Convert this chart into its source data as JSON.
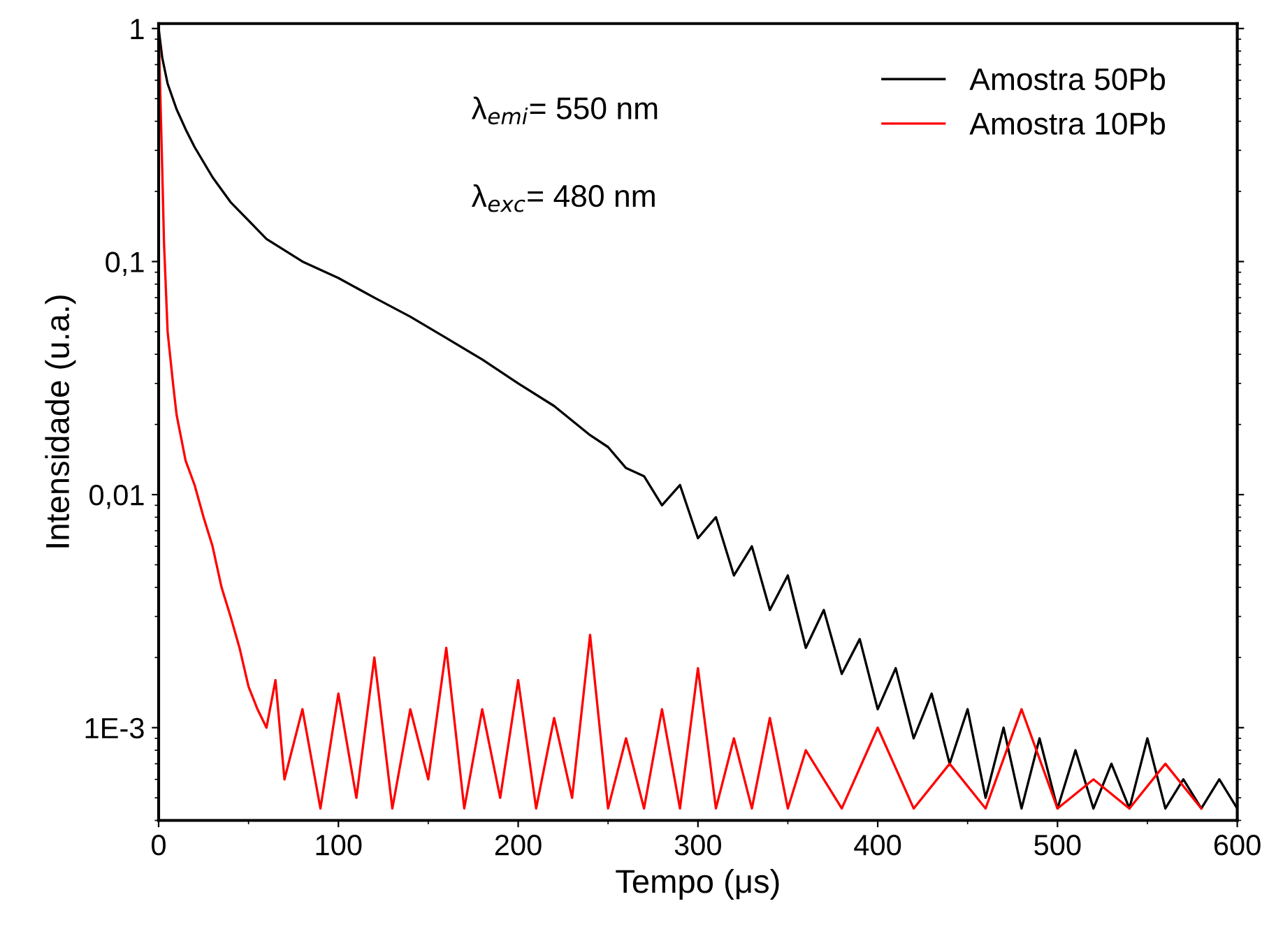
{
  "chart_data": {
    "type": "line",
    "xlabel": "Tempo (μs)",
    "ylabel": "Intensidade (u.a.)",
    "log": "y",
    "xlim": [
      0,
      600
    ],
    "xticks": [
      0,
      100,
      200,
      300,
      400,
      500,
      600
    ],
    "ylim": [
      0.0004,
      1.05
    ],
    "yticks": [
      1,
      {
        "value": 0.1,
        "label": "0,1"
      },
      {
        "value": 0.01,
        "label": "0,01"
      },
      {
        "value": 0.001,
        "label": "1E-3"
      }
    ],
    "grid": false,
    "legend": "top right",
    "line_style": "solid",
    "marker": "none",
    "annotations": [
      "λ$_{emi}$= 550 nm",
      "λ$_{exc}$= 480 nm"
    ],
    "series": [
      {
        "name": "Amostra 50Pb",
        "color": "#000000",
        "x": [
          0,
          2,
          5,
          10,
          15,
          20,
          30,
          40,
          50,
          60,
          80,
          100,
          120,
          140,
          160,
          180,
          200,
          220,
          240,
          250,
          260,
          270,
          280,
          290,
          300,
          310,
          320,
          330,
          340,
          350,
          360,
          370,
          380,
          390,
          400,
          410,
          420,
          430,
          440,
          450,
          460,
          470,
          480,
          490,
          500,
          510,
          520,
          530,
          540,
          550,
          560,
          570,
          580,
          590,
          600
        ],
        "values": [
          1,
          0.75,
          0.58,
          0.45,
          0.37,
          0.31,
          0.23,
          0.18,
          0.15,
          0.125,
          0.1,
          0.085,
          0.07,
          0.058,
          0.047,
          0.038,
          0.03,
          0.024,
          0.018,
          0.016,
          0.013,
          0.012,
          0.009,
          0.011,
          0.0065,
          0.008,
          0.0045,
          0.006,
          0.0032,
          0.0045,
          0.0022,
          0.0032,
          0.0017,
          0.0024,
          0.0012,
          0.0018,
          0.0009,
          0.0014,
          0.0007,
          0.0012,
          0.0005,
          0.001,
          0.00045,
          0.0009,
          0.00045,
          0.0008,
          0.00045,
          0.0007,
          0.00045,
          0.0009,
          0.00045,
          0.0006,
          0.00045,
          0.0006,
          0.00045
        ]
      },
      {
        "name": "Amostra 10Pb",
        "color": "#ff0000",
        "x": [
          0,
          1,
          2,
          3,
          5,
          8,
          10,
          15,
          20,
          25,
          30,
          35,
          40,
          45,
          50,
          55,
          60,
          65,
          70,
          80,
          90,
          100,
          110,
          120,
          130,
          140,
          150,
          160,
          170,
          180,
          190,
          200,
          210,
          220,
          230,
          240,
          250,
          260,
          270,
          280,
          290,
          300,
          310,
          320,
          330,
          340,
          350,
          360,
          380,
          400,
          420,
          440,
          460,
          480,
          500,
          520,
          540,
          560,
          580
        ],
        "values": [
          1,
          0.5,
          0.25,
          0.12,
          0.05,
          0.03,
          0.022,
          0.014,
          0.011,
          0.008,
          0.006,
          0.004,
          0.003,
          0.0022,
          0.0015,
          0.0012,
          0.001,
          0.0016,
          0.0006,
          0.0012,
          0.00045,
          0.0014,
          0.0005,
          0.002,
          0.00045,
          0.0012,
          0.0006,
          0.0022,
          0.00045,
          0.0012,
          0.0005,
          0.0016,
          0.00045,
          0.0011,
          0.0005,
          0.0025,
          0.00045,
          0.0009,
          0.00045,
          0.0012,
          0.00045,
          0.0018,
          0.00045,
          0.0009,
          0.00045,
          0.0011,
          0.00045,
          0.0008,
          0.00045,
          0.001,
          0.00045,
          0.0007,
          0.00045,
          0.0012,
          0.00045,
          0.0006,
          0.00045,
          0.0007,
          0.00045
        ]
      }
    ]
  }
}
